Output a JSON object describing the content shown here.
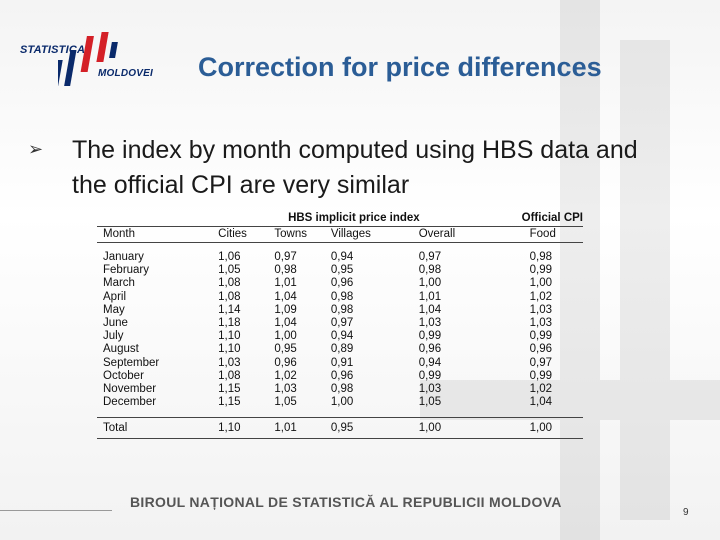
{
  "logo": {
    "line1": "STATISTICA",
    "line2": "MOLDOVEI"
  },
  "title": "Correction for price differences",
  "bullet_text": "The index by month computed using HBS data and the official CPI are very similar",
  "table": {
    "group_header_hbs": "HBS implicit price index",
    "group_header_cpi": "Official CPI",
    "columns": [
      "Month",
      "Cities",
      "Towns",
      "Villages",
      "Overall",
      "Food"
    ],
    "rows": [
      [
        "January",
        "1,06",
        "0,97",
        "0,94",
        "0,97",
        "0,98"
      ],
      [
        "February",
        "1,05",
        "0,98",
        "0,95",
        "0,98",
        "0,99"
      ],
      [
        "March",
        "1,08",
        "1,01",
        "0,96",
        "1,00",
        "1,00"
      ],
      [
        "April",
        "1,08",
        "1,04",
        "0,98",
        "1,01",
        "1,02"
      ],
      [
        "May",
        "1,14",
        "1,09",
        "0,98",
        "1,04",
        "1,03"
      ],
      [
        "June",
        "1,18",
        "1,04",
        "0,97",
        "1,03",
        "1,03"
      ],
      [
        "July",
        "1,10",
        "1,00",
        "0,94",
        "0,99",
        "0,99"
      ],
      [
        "August",
        "1,10",
        "0,95",
        "0,89",
        "0,96",
        "0,96"
      ],
      [
        "September",
        "1,03",
        "0,96",
        "0,91",
        "0,94",
        "0,97"
      ],
      [
        "October",
        "1,08",
        "1,02",
        "0,96",
        "0,99",
        "0,99"
      ],
      [
        "November",
        "1,15",
        "1,03",
        "0,98",
        "1,03",
        "1,02"
      ],
      [
        "December",
        "1,15",
        "1,05",
        "1,00",
        "1,05",
        "1,04"
      ]
    ],
    "total": [
      "Total",
      "1,10",
      "1,01",
      "0,95",
      "1,00",
      "1,00"
    ]
  },
  "footer": "BIROUL NAȚIONAL DE STATISTICĂ AL REPUBLICII MOLDOVA",
  "page_number": "9",
  "colors": {
    "title": "#2b5d96",
    "logo_blue": "#0a2a6b",
    "logo_red": "#d42027"
  }
}
